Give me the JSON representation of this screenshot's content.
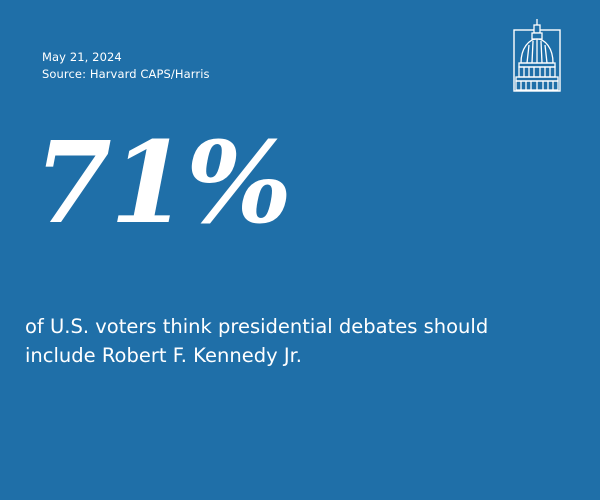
{
  "meta": {
    "date": "May 21, 2024",
    "source": "Source: Harvard CAPS/Harris"
  },
  "logo": {
    "icon": "capitol-dome-icon"
  },
  "stat": {
    "value": "71%"
  },
  "caption": {
    "line1": "of U.S. voters think presidential debates should",
    "line2": "include Robert F. Kennedy Jr."
  },
  "colors": {
    "background": "#1f6fa8",
    "text": "#ffffff"
  }
}
